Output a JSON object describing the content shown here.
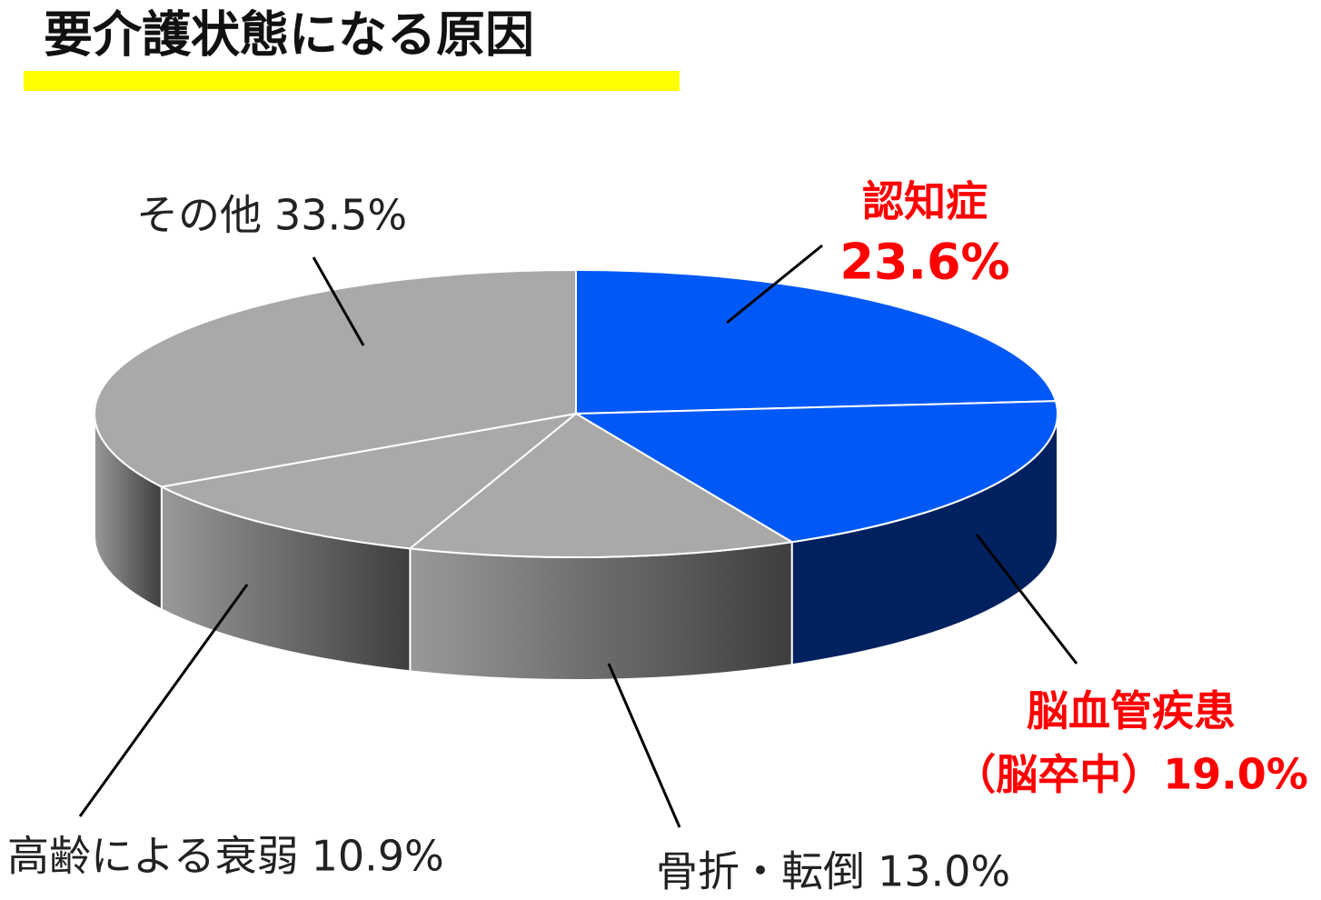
{
  "chart_data": {
    "type": "pie",
    "title": "要介護状態になる原因",
    "categories": [
      "認知症",
      "脳血管疾患（脳卒中）",
      "骨折・転倒",
      "高齢による衰弱",
      "その他"
    ],
    "values": [
      23.6,
      19.0,
      13.0,
      10.9,
      33.5
    ],
    "value_labels": [
      "23.6%",
      "19.0%",
      "13.0%",
      "10.9%",
      "33.5%"
    ],
    "colors": [
      "#0059f7",
      "#0059f7",
      "#aba9a8",
      "#aba9a8",
      "#aba9a8"
    ],
    "label_colors": [
      "#ff0000",
      "#ff0000",
      "#222222",
      "#222222",
      "#222222"
    ]
  }
}
